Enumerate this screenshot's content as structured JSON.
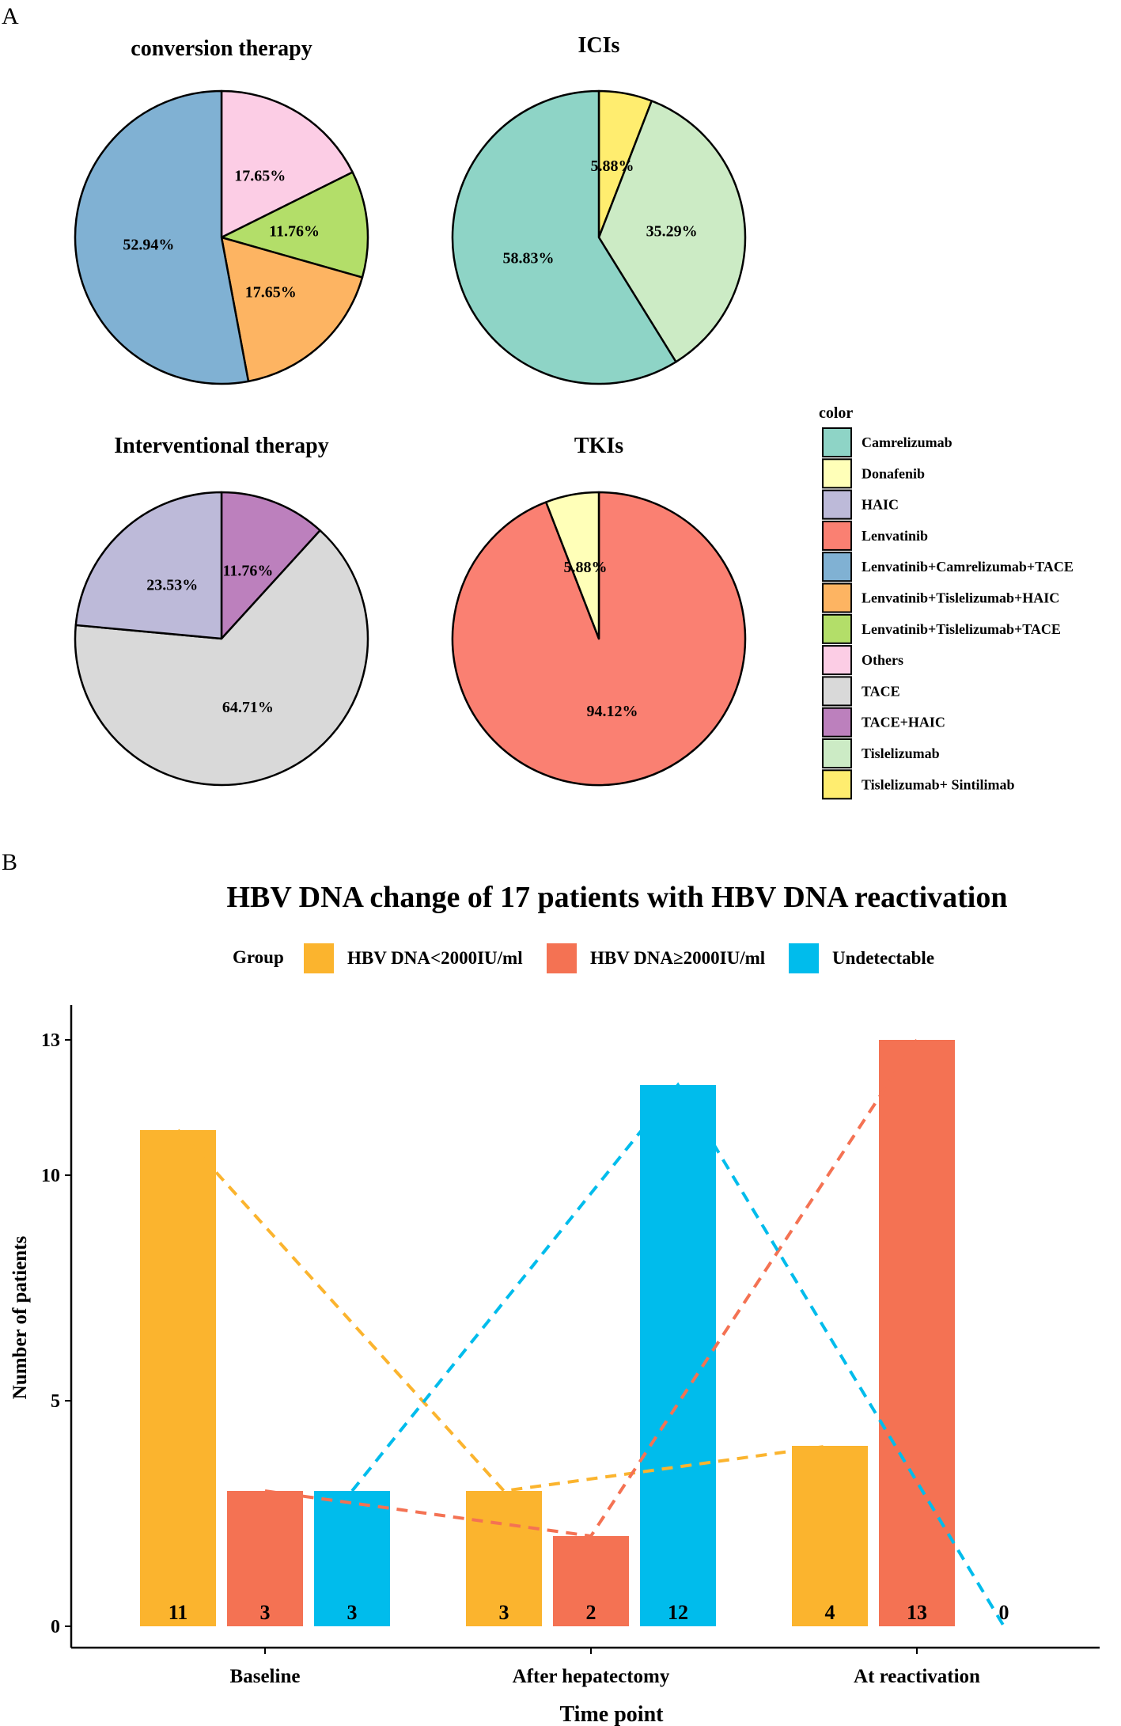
{
  "panels": {
    "a_label": "A",
    "b_label": "B"
  },
  "colors": {
    "Camrelizumab": "#8ed4c6",
    "Donafenib": "#ffffb8",
    "HAIC": "#bdbad9",
    "Lenvatinib": "#fa8072",
    "Lenvatinib+Camrelizumab+TACE": "#80b1d3",
    "Lenvatinib+Tislelizumab+HAIC": "#fdb462",
    "Lenvatinib+Tislelizumab+TACE": "#b3de69",
    "Others": "#fccde5",
    "TACE": "#d9d9d9",
    "TACE+HAIC": "#bc80bd",
    "Tislelizumab": "#ccebc5",
    "Tislelizumab+ Sintilimab": "#ffed6f",
    "bar_low": "#fbb42e",
    "bar_high": "#f47253",
    "bar_undetectable": "#00bcec"
  },
  "chart_data": [
    {
      "type": "pie",
      "title": "conversion therapy",
      "slices": [
        {
          "label": "Others",
          "value": 17.65,
          "text": "17.65%"
        },
        {
          "label": "Lenvatinib+Tislelizumab+TACE",
          "value": 11.76,
          "text": "11.76%"
        },
        {
          "label": "Lenvatinib+Tislelizumab+HAIC",
          "value": 17.65,
          "text": "17.65%"
        },
        {
          "label": "Lenvatinib+Camrelizumab+TACE",
          "value": 52.94,
          "text": "52.94%"
        }
      ]
    },
    {
      "type": "pie",
      "title": "ICIs",
      "slices": [
        {
          "label": "Tislelizumab+ Sintilimab",
          "value": 5.88,
          "text": "5.88%"
        },
        {
          "label": "Tislelizumab",
          "value": 35.29,
          "text": "35.29%"
        },
        {
          "label": "Camrelizumab",
          "value": 58.83,
          "text": "58.83%"
        }
      ]
    },
    {
      "type": "pie",
      "title": "Interventional therapy",
      "slices": [
        {
          "label": "TACE+HAIC",
          "value": 11.76,
          "text": "11.76%"
        },
        {
          "label": "TACE",
          "value": 64.71,
          "text": "64.71%"
        },
        {
          "label": "HAIC",
          "value": 23.53,
          "text": "23.53%"
        }
      ]
    },
    {
      "type": "pie",
      "title": "TKIs",
      "slices": [
        {
          "label": "Lenvatinib",
          "value": 94.12,
          "text": "94.12%"
        },
        {
          "label": "Donafenib",
          "value": 5.88,
          "text": "5.88%"
        }
      ]
    },
    {
      "type": "bar",
      "title": "HBV DNA change of 17 patients with HBV DNA reactivation",
      "xlabel": "Time point",
      "ylabel": "Number of patients",
      "ylim": [
        0,
        13.6
      ],
      "yticks": [
        0,
        5,
        10,
        13
      ],
      "categories": [
        "Baseline",
        "After hepatectomy",
        "At reactivation"
      ],
      "legend_title": "Group",
      "series": [
        {
          "name": "HBV DNA<2000IU/ml",
          "color_key": "bar_low",
          "values": [
            11,
            3,
            4
          ]
        },
        {
          "name": "HBV DNA≥2000IU/ml",
          "color_key": "bar_high",
          "values": [
            3,
            2,
            13
          ]
        },
        {
          "name": "Undetectable",
          "color_key": "bar_undetectable",
          "values": [
            3,
            12,
            0
          ]
        }
      ]
    }
  ],
  "legend": {
    "title": "color",
    "items": [
      "Camrelizumab",
      "Donafenib",
      "HAIC",
      "Lenvatinib",
      "Lenvatinib+Camrelizumab+TACE",
      "Lenvatinib+Tislelizumab+HAIC",
      "Lenvatinib+Tislelizumab+TACE",
      "Others",
      "TACE",
      "TACE+HAIC",
      "Tislelizumab",
      "Tislelizumab+ Sintilimab"
    ]
  }
}
